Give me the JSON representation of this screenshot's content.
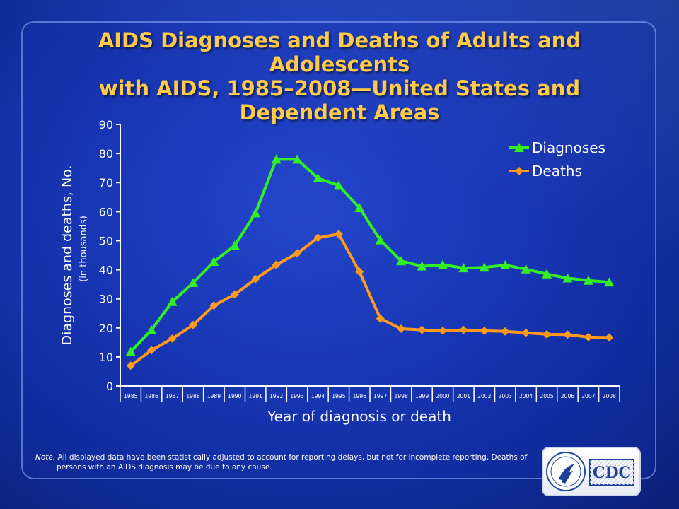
{
  "title": "AIDS Diagnoses and Deaths of Adults and Adolescents with AIDS, 1985–2008—United States and Dependent Areas",
  "title_lines": [
    "AIDS Diagnoses and Deaths of Adults and Adolescents",
    "with AIDS, 1985–2008—United States and",
    "Dependent Areas"
  ],
  "note": {
    "label": "Note.",
    "text": "All displayed data have been statistically adjusted to account for reporting delays, but not for incomplete reporting. Deaths of persons with an AIDS diagnosis may be due to any cause."
  },
  "logo": {
    "text": "CDC"
  },
  "colors": {
    "title": "#ffc94a",
    "diagnoses": "#33ee22",
    "deaths": "#ff9a1a",
    "axis": "#ffffff"
  },
  "chart_data": {
    "type": "line",
    "xlabel": "Year of diagnosis or death",
    "ylabel": "Diagnoses and deaths, No.",
    "ylabel_sub": "(in thousands)",
    "ylim": [
      0,
      90
    ],
    "yticks": [
      0,
      10,
      20,
      30,
      40,
      50,
      60,
      70,
      80,
      90
    ],
    "grid": false,
    "legend_position": "top-right",
    "categories": [
      "1985",
      "1986",
      "1987",
      "1988",
      "1989",
      "1990",
      "1991",
      "1992",
      "1993",
      "1994",
      "1995",
      "1996",
      "1997",
      "1998",
      "1999",
      "2000",
      "2001",
      "2002",
      "2003",
      "2004",
      "2005",
      "2006",
      "2007",
      "2008"
    ],
    "series": [
      {
        "name": "Diagnoses",
        "marker": "triangle",
        "color": "#33ee22",
        "values": [
          11.8,
          19.3,
          29,
          35.5,
          42.8,
          48.3,
          59.5,
          78,
          78,
          71.5,
          69,
          61.3,
          50.2,
          43,
          41.2,
          41.7,
          40.6,
          40.8,
          41.6,
          40.2,
          38.5,
          37.1,
          36.3,
          35.7
        ]
      },
      {
        "name": "Deaths",
        "marker": "diamond",
        "color": "#ff9a1a",
        "values": [
          7,
          12.3,
          16.3,
          21,
          27.7,
          31.5,
          36.8,
          41.7,
          45.6,
          51,
          52.3,
          39.3,
          23.2,
          19.7,
          19.3,
          19,
          19.3,
          19,
          18.8,
          18.3,
          17.8,
          17.7,
          16.8,
          16.7
        ]
      }
    ]
  }
}
